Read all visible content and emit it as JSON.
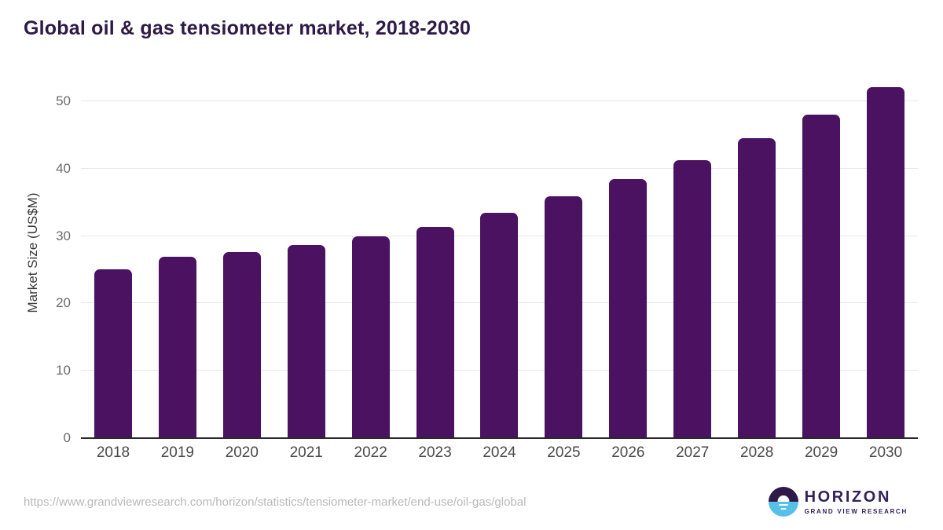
{
  "header": {
    "title": "Global oil & gas tensiometer market, 2018-2030"
  },
  "chart_data": {
    "type": "bar",
    "title": "Global oil & gas tensiometer market, 2018-2030",
    "categories": [
      "2018",
      "2019",
      "2020",
      "2021",
      "2022",
      "2023",
      "2024",
      "2025",
      "2026",
      "2027",
      "2028",
      "2029",
      "2030"
    ],
    "values": [
      25.1,
      26.9,
      27.6,
      28.7,
      30.0,
      31.3,
      33.4,
      35.9,
      38.4,
      41.2,
      44.5,
      48.0,
      52.1
    ],
    "xlabel": "",
    "ylabel": "Market Size (US$M)",
    "ylim": [
      0,
      55
    ],
    "yticks": [
      0,
      10,
      20,
      30,
      40,
      50
    ],
    "grid": true,
    "legend": "none",
    "bar_color": "#4a1260"
  },
  "footer": {
    "source_url": "https://www.grandviewresearch.com/horizon/statistics/tensiometer-market/end-use/oil-gas/global",
    "logo": {
      "name": "HORIZON",
      "subtitle": "GRAND VIEW RESEARCH"
    }
  },
  "colors": {
    "title": "#2e1a47",
    "bar": "#4a1260",
    "gridline": "#e7e7ea",
    "axis_line": "#2a2a2a",
    "y_tick_label": "#6b6b6b",
    "x_tick_label": "#4a4a4a",
    "source_url": "#b9b9b9",
    "logo_purple": "#2e1a47",
    "logo_blue": "#56c0ea",
    "logo_text": "#33215c"
  }
}
